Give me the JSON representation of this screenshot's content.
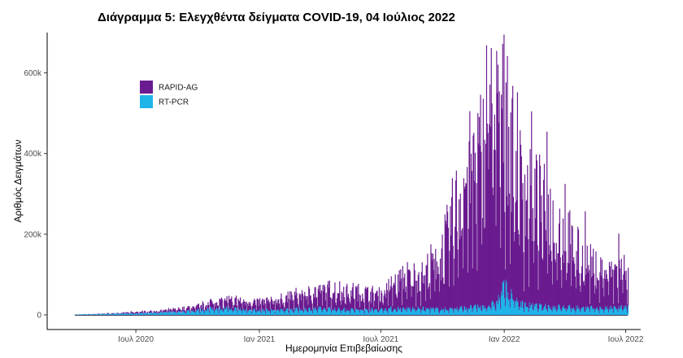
{
  "chart_data": {
    "type": "bar",
    "title": "Διάγραμμα 5: Ελεγχθέντα δείγματα COVID-19, 04 Ιούλιος 2022",
    "xlabel": "Ημερομηνία Επιβεβαίωσης",
    "ylabel": "Αριθμός Δειγμάτων",
    "stacked": true,
    "x_range": [
      "2020-04-01",
      "2022-07-04"
    ],
    "ylim": [
      0,
      700000
    ],
    "y_ticks": [
      0,
      200000,
      400000,
      600000
    ],
    "y_tick_labels": [
      "0",
      "200k",
      "400k",
      "600k"
    ],
    "x_ticks": [
      "2020-07-01",
      "2021-01-01",
      "2021-07-01",
      "2022-01-01",
      "2022-07-01"
    ],
    "x_tick_labels": [
      "Ιουλ 2020",
      "Ιαν 2021",
      "Ιουλ 2021",
      "Ιαν 2022",
      "Ιουλ 2022"
    ],
    "grid": false,
    "legend_position": "top-left",
    "series": [
      {
        "name": "RAPID-AG",
        "color": "#6a1b8f",
        "points": [
          {
            "x": "2020-04-01",
            "y": 0
          },
          {
            "x": "2020-05-01",
            "y": 500
          },
          {
            "x": "2020-06-01",
            "y": 1500
          },
          {
            "x": "2020-07-01",
            "y": 3000
          },
          {
            "x": "2020-08-01",
            "y": 4000
          },
          {
            "x": "2020-09-01",
            "y": 6000
          },
          {
            "x": "2020-10-01",
            "y": 9000
          },
          {
            "x": "2020-11-01",
            "y": 18000
          },
          {
            "x": "2020-12-01",
            "y": 20000
          },
          {
            "x": "2021-01-01",
            "y": 18000
          },
          {
            "x": "2021-02-01",
            "y": 24000
          },
          {
            "x": "2021-03-01",
            "y": 32000
          },
          {
            "x": "2021-04-01",
            "y": 40000
          },
          {
            "x": "2021-05-01",
            "y": 45000
          },
          {
            "x": "2021-06-01",
            "y": 38000
          },
          {
            "x": "2021-07-01",
            "y": 35000
          },
          {
            "x": "2021-08-01",
            "y": 70000
          },
          {
            "x": "2021-09-01",
            "y": 75000
          },
          {
            "x": "2021-10-01",
            "y": 130000
          },
          {
            "x": "2021-11-01",
            "y": 280000
          },
          {
            "x": "2021-12-01",
            "y": 350000
          },
          {
            "x": "2021-12-15",
            "y": 400000
          },
          {
            "x": "2022-01-01",
            "y": 380000
          },
          {
            "x": "2022-01-15",
            "y": 330000
          },
          {
            "x": "2022-02-01",
            "y": 250000
          },
          {
            "x": "2022-03-01",
            "y": 220000
          },
          {
            "x": "2022-04-01",
            "y": 160000
          },
          {
            "x": "2022-05-01",
            "y": 100000
          },
          {
            "x": "2022-06-01",
            "y": 80000
          },
          {
            "x": "2022-07-04",
            "y": 90000
          }
        ]
      },
      {
        "name": "RT-PCR",
        "color": "#1fb4e8",
        "points": [
          {
            "x": "2020-04-01",
            "y": 1000
          },
          {
            "x": "2020-05-01",
            "y": 2000
          },
          {
            "x": "2020-06-01",
            "y": 3000
          },
          {
            "x": "2020-07-01",
            "y": 4000
          },
          {
            "x": "2020-08-01",
            "y": 6000
          },
          {
            "x": "2020-09-01",
            "y": 8000
          },
          {
            "x": "2020-10-01",
            "y": 12000
          },
          {
            "x": "2020-11-01",
            "y": 18000
          },
          {
            "x": "2020-12-01",
            "y": 15000
          },
          {
            "x": "2021-01-01",
            "y": 12000
          },
          {
            "x": "2021-02-01",
            "y": 13000
          },
          {
            "x": "2021-03-01",
            "y": 15000
          },
          {
            "x": "2021-04-01",
            "y": 16000
          },
          {
            "x": "2021-05-01",
            "y": 15000
          },
          {
            "x": "2021-06-01",
            "y": 13000
          },
          {
            "x": "2021-07-01",
            "y": 15000
          },
          {
            "x": "2021-08-01",
            "y": 17000
          },
          {
            "x": "2021-09-01",
            "y": 16000
          },
          {
            "x": "2021-10-01",
            "y": 15000
          },
          {
            "x": "2021-11-01",
            "y": 18000
          },
          {
            "x": "2021-12-01",
            "y": 22000
          },
          {
            "x": "2021-12-20",
            "y": 30000
          },
          {
            "x": "2022-01-01",
            "y": 75000
          },
          {
            "x": "2022-01-15",
            "y": 40000
          },
          {
            "x": "2022-02-01",
            "y": 25000
          },
          {
            "x": "2022-03-01",
            "y": 22000
          },
          {
            "x": "2022-04-01",
            "y": 20000
          },
          {
            "x": "2022-05-01",
            "y": 18000
          },
          {
            "x": "2022-06-01",
            "y": 17000
          },
          {
            "x": "2022-07-04",
            "y": 20000
          }
        ]
      }
    ],
    "peaks": [
      {
        "x": "2021-12-05",
        "y": 660000
      },
      {
        "x": "2021-12-12",
        "y": 650000
      },
      {
        "x": "2021-12-20",
        "y": 620000
      },
      {
        "x": "2022-01-05",
        "y": 600000
      },
      {
        "x": "2022-01-20",
        "y": 520000
      },
      {
        "x": "2021-11-15",
        "y": 430000
      },
      {
        "x": "2022-02-10",
        "y": 480000
      },
      {
        "x": "2022-03-05",
        "y": 440000
      },
      {
        "x": "2022-04-01",
        "y": 310000
      },
      {
        "x": "2022-05-01",
        "y": 250000
      },
      {
        "x": "2022-06-20",
        "y": 180000
      }
    ]
  }
}
